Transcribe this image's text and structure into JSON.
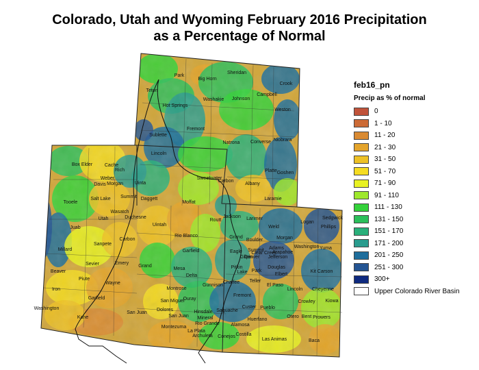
{
  "title_line1": "Colorado, Utah and Wyoming February 2016 Precipitation",
  "title_line2": "as a Percentage of Normal",
  "legend": {
    "title": "feb16_pn",
    "subtitle": "Precip as % of normal",
    "items": [
      {
        "label": "0",
        "color": "#c1533a"
      },
      {
        "label": "1 - 10",
        "color": "#cc6b36"
      },
      {
        "label": "11 - 20",
        "color": "#d98a32"
      },
      {
        "label": "21 - 30",
        "color": "#e4a42c"
      },
      {
        "label": "31 - 50",
        "color": "#edc126"
      },
      {
        "label": "51 - 70",
        "color": "#f5dc22"
      },
      {
        "label": "71 - 90",
        "color": "#e8f222"
      },
      {
        "label": "91 - 110",
        "color": "#9ee82c"
      },
      {
        "label": "111 - 130",
        "color": "#34d23a"
      },
      {
        "label": "131 - 150",
        "color": "#2cbf5b"
      },
      {
        "label": "151 - 170",
        "color": "#2ab07b"
      },
      {
        "label": "171 - 200",
        "color": "#2a9c8e"
      },
      {
        "label": "201 - 250",
        "color": "#1f6e9c"
      },
      {
        "label": "251 - 300",
        "color": "#245593"
      },
      {
        "label": "300+",
        "color": "#0f2a7f"
      },
      {
        "label": "Upper Colorado River Basin",
        "color": "#ffffff"
      }
    ]
  },
  "counties": {
    "wyoming": [
      "Park",
      "Big Horn",
      "Sheridan",
      "Crook",
      "Teton",
      "Washakie",
      "Johnson",
      "Campbell",
      "Hot Springs",
      "Weston",
      "Fremont",
      "Sublette",
      "Natrona",
      "Converse",
      "Niobrara",
      "Lincoln",
      "Sweetwater",
      "Carbon",
      "Albany",
      "Platte",
      "Goshen",
      "Laramie",
      "Uinta"
    ],
    "utah": [
      "Box Elder",
      "Cache",
      "Rich",
      "Weber",
      "Davis",
      "Morgan",
      "Tooele",
      "Salt Lake",
      "Summit",
      "Daggett",
      "Wasatch",
      "Utah",
      "Duchesne",
      "Uintah",
      "Juab",
      "Sanpete",
      "Carbon",
      "Millard",
      "Sevier",
      "Emery",
      "Grand",
      "Beaver",
      "Piute",
      "Wayne",
      "Iron",
      "Garfield",
      "Washington",
      "Kane",
      "San Juan"
    ],
    "colorado": [
      "Moffat",
      "Routt",
      "Jackson",
      "Larimer",
      "Weld",
      "Logan",
      "Sedgwick",
      "Phillips",
      "Rio Blanco",
      "Grand",
      "Boulder",
      "Morgan",
      "Washington",
      "Yuma",
      "Garfield",
      "Eagle",
      "Summit",
      "Gilpin",
      "Clear Creek",
      "Jefferson",
      "Arapahoe",
      "Adams",
      "Denver",
      "Mesa",
      "Pitkin",
      "Lake",
      "Park",
      "Douglas",
      "Elbert",
      "Kit Carson",
      "Delta",
      "Gunnison",
      "Chaffee",
      "Teller",
      "El Paso",
      "Lincoln",
      "Cheyenne",
      "Montrose",
      "Ouray",
      "Fremont",
      "Custer",
      "Pueblo",
      "San Miguel",
      "Hinsdale",
      "Saguache",
      "Crowley",
      "Kiowa",
      "Dolores",
      "San Juan",
      "Mineral",
      "Rio Grande",
      "Alamosa",
      "Huerfano",
      "Otero",
      "Bent",
      "Prowers",
      "Montezuma",
      "La Plata",
      "Archuleta",
      "Conejos",
      "Costilla",
      "Las Animas",
      "Baca"
    ]
  }
}
